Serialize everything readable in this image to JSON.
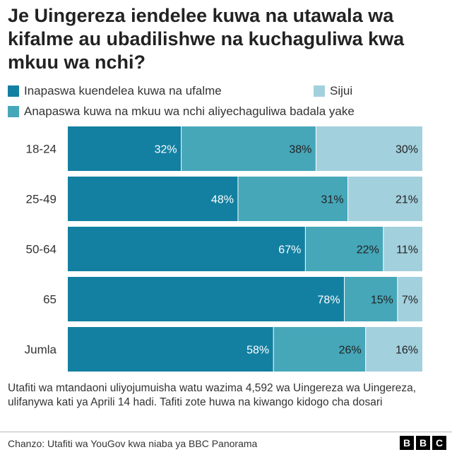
{
  "chart_data": {
    "type": "bar",
    "orientation": "horizontal",
    "stacked": true,
    "title": "Je Uingereza iendelee kuwa na utawala wa kifalme au ubadilishwe na kuchaguliwa kwa mkuu wa nchi?",
    "categories": [
      "18-24",
      "25-49",
      "50-64",
      "65",
      "Jumla"
    ],
    "series": [
      {
        "name": "Inapaswa kuendelea kuwa na ufalme",
        "color": "#1380A1",
        "values": [
          32,
          48,
          67,
          78,
          58
        ]
      },
      {
        "name": "Anapaswa kuwa na mkuu wa nchi aliyechaguliwa badala yake",
        "color": "#46A7B9",
        "values": [
          38,
          31,
          22,
          15,
          26
        ]
      },
      {
        "name": "Sijui",
        "color": "#A3D0DD",
        "values": [
          30,
          21,
          11,
          7,
          16
        ]
      }
    ],
    "value_suffix": "%",
    "xlim": [
      0,
      100
    ],
    "legend_position": "top",
    "grid": false
  },
  "note": "Utafiti wa mtandaoni uliyojumuisha watu wazima 4,592 wa Uingereza wa Uingereza, ulifanywa kati ya Aprili 14 hadi. Tafiti zote huwa na kiwango kidogo cha dosari",
  "source": "Chanzo: Utafiti wa YouGov kwa niaba ya BBC Panorama",
  "logo": {
    "letters": [
      "B",
      "B",
      "C"
    ]
  }
}
